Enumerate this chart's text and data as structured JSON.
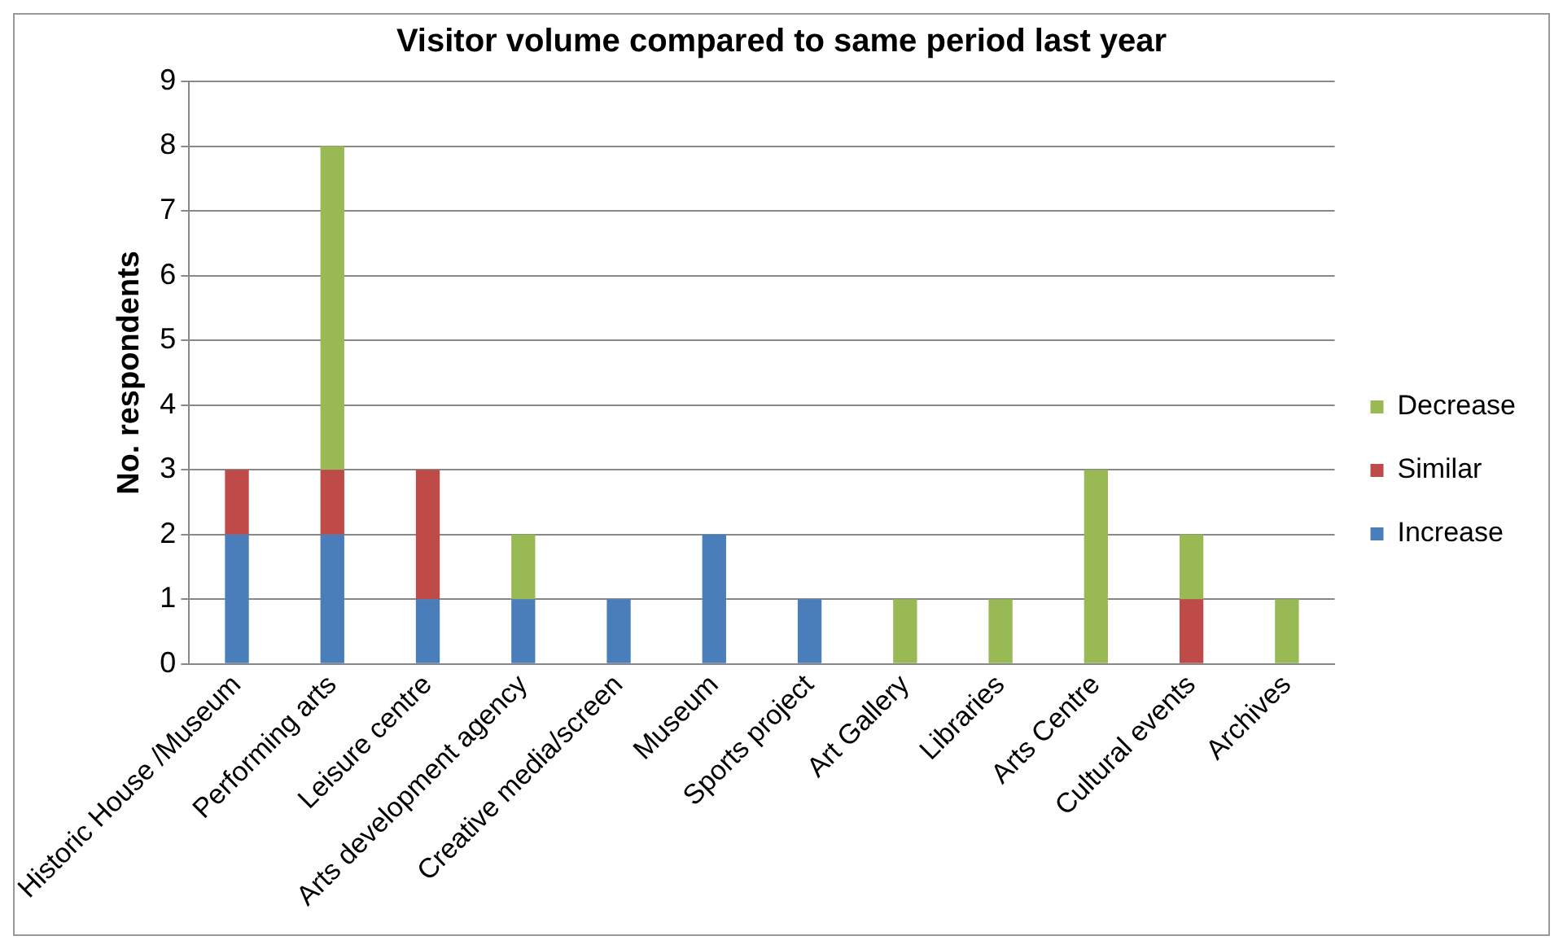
{
  "chart_data": {
    "type": "bar",
    "title": "Visitor volume compared to same period last year",
    "ylabel": "No. respondents",
    "categories": [
      "Historic House /Museum",
      "Performing arts",
      "Leisure centre",
      "Arts development agency",
      "Creative media/screen",
      "Museum",
      "Sports project",
      "Art Gallery",
      "Libraries",
      "Arts Centre",
      "Cultural events",
      "Archives"
    ],
    "stacked": true,
    "series": [
      {
        "name": "Increase",
        "color": "#4a7ebb",
        "values": [
          2,
          2,
          1,
          1,
          1,
          2,
          1,
          0,
          0,
          0,
          0,
          0
        ]
      },
      {
        "name": "Similar",
        "color": "#be4b48",
        "values": [
          1,
          1,
          2,
          0,
          0,
          0,
          0,
          0,
          0,
          0,
          1,
          0
        ]
      },
      {
        "name": "Decrease",
        "color": "#98b954",
        "values": [
          0,
          5,
          0,
          1,
          0,
          0,
          0,
          1,
          1,
          3,
          1,
          1
        ]
      }
    ],
    "ylim": [
      0,
      9
    ],
    "yticks": [
      0,
      1,
      2,
      3,
      4,
      5,
      6,
      7,
      8,
      9
    ],
    "grid": "y",
    "legend": "right"
  }
}
